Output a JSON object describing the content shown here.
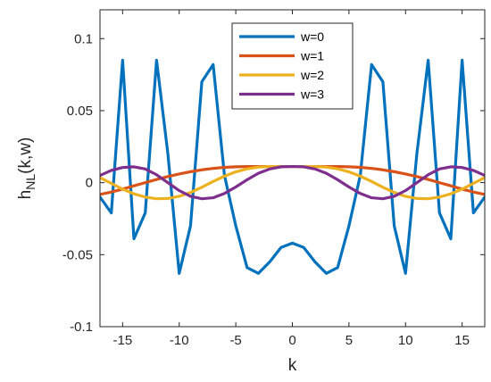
{
  "chart_data": {
    "type": "line",
    "title": "",
    "xlabel": "k",
    "ylabel_main": "h",
    "ylabel_sub": "NL",
    "ylabel_suffix": "(k,w)",
    "xlim": [
      -17,
      17
    ],
    "ylim": [
      -0.1,
      0.12
    ],
    "xticks": [
      -15,
      -10,
      -5,
      0,
      5,
      10,
      15
    ],
    "xtick_labels": [
      "-15",
      "-10",
      "-5",
      "0",
      "5",
      "10",
      "15"
    ],
    "yticks": [
      -0.1,
      -0.05,
      0,
      0.05,
      0.1
    ],
    "ytick_labels": [
      "-0.1",
      "-0.05",
      "0",
      "0.05",
      "0.1"
    ],
    "grid": false,
    "legend_position": "top-center",
    "x": [
      -17,
      -16,
      -15,
      -14,
      -13,
      -12,
      -11,
      -10,
      -9,
      -8,
      -7,
      -6,
      -5,
      -4,
      -3,
      -2,
      -1,
      0,
      1,
      2,
      3,
      4,
      5,
      6,
      7,
      8,
      9,
      10,
      11,
      12,
      13,
      14,
      15,
      16,
      17
    ],
    "series": [
      {
        "name": "w=0",
        "color": "#0072BD",
        "values": [
          -0.01,
          -0.021,
          0.085,
          -0.039,
          -0.021,
          0.085,
          0.02,
          -0.063,
          -0.03,
          0.07,
          0.082,
          0.005,
          -0.03,
          -0.059,
          -0.063,
          -0.055,
          -0.045,
          -0.042,
          -0.045,
          -0.055,
          -0.063,
          -0.059,
          -0.03,
          0.005,
          0.082,
          0.07,
          -0.03,
          -0.063,
          0.02,
          0.085,
          -0.021,
          -0.039,
          0.085,
          -0.021,
          -0.01
        ]
      },
      {
        "name": "w=1",
        "color": "#D95319",
        "values": [
          -0.0082,
          -0.0065,
          -0.0045,
          -0.0022,
          0.0,
          0.0022,
          0.0042,
          0.006,
          0.0076,
          0.0089,
          0.0099,
          0.0106,
          0.011,
          0.0112,
          0.0112,
          0.0112,
          0.0112,
          0.0112,
          0.0112,
          0.0112,
          0.0112,
          0.0112,
          0.011,
          0.0106,
          0.0099,
          0.0089,
          0.0076,
          0.006,
          0.0042,
          0.0022,
          0.0,
          -0.0022,
          -0.0045,
          -0.0065,
          -0.0082
        ]
      },
      {
        "name": "w=2",
        "color": "#EDB120",
        "values": [
          0.0035,
          -0.0005,
          -0.0045,
          -0.0078,
          -0.01,
          -0.0112,
          -0.011,
          -0.0095,
          -0.0068,
          -0.0032,
          0.0008,
          0.0045,
          0.0075,
          0.0096,
          0.0108,
          0.0112,
          0.0112,
          0.0112,
          0.0112,
          0.0112,
          0.0108,
          0.0096,
          0.0075,
          0.0045,
          0.0008,
          -0.0032,
          -0.0068,
          -0.0095,
          -0.011,
          -0.0112,
          -0.01,
          -0.0078,
          -0.0045,
          -0.0005,
          0.0035
        ]
      },
      {
        "name": "w=3",
        "color": "#7E2F8E",
        "values": [
          0.005,
          0.0085,
          0.0105,
          0.011,
          0.0095,
          0.0055,
          0.0,
          -0.0055,
          -0.0095,
          -0.0112,
          -0.0105,
          -0.0075,
          -0.003,
          0.002,
          0.0065,
          0.0095,
          0.011,
          0.0112,
          0.011,
          0.0095,
          0.0065,
          0.002,
          -0.003,
          -0.0075,
          -0.0105,
          -0.0112,
          -0.0095,
          -0.0055,
          0.0,
          0.0055,
          0.0095,
          0.011,
          0.0105,
          0.0085,
          0.005
        ]
      }
    ]
  }
}
